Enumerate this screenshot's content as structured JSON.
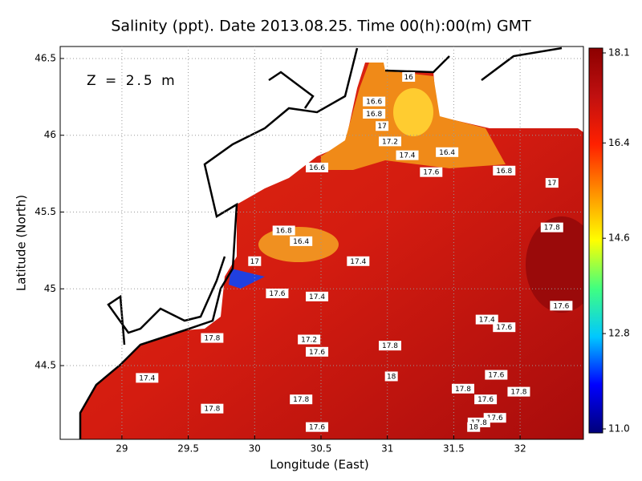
{
  "chart_data": {
    "type": "contour",
    "title": "Salinity (ppt). Date 2013.08.25. Time 00(h):00(m) GMT",
    "annotation": "Z = 2.5 m",
    "x_label": "Longitude (East)",
    "y_label": "Latitude (North)",
    "xlim": [
      28.535,
      32.477
    ],
    "ylim": [
      44.02,
      46.578
    ],
    "xticks": [
      29,
      29.5,
      30,
      30.5,
      31,
      31.5,
      32
    ],
    "yticks": [
      44.5,
      45,
      45.5,
      46,
      46.5
    ],
    "grid": true,
    "clim": [
      11,
      18.1
    ],
    "cticks": [
      {
        "value": 11,
        "label": "11.0"
      },
      12.8,
      14.6,
      16.4,
      18.1
    ],
    "colormap": [
      "#00007a",
      "#0000ff",
      "#00c8ff",
      "#40ff80",
      "#ffff00",
      "#ff9000",
      "#ff2000",
      "#c01010",
      "#8c0000"
    ],
    "contour_labels": [
      {
        "lon": 31.16,
        "lat": 46.38,
        "value": 16
      },
      {
        "lon": 30.9,
        "lat": 46.22,
        "value": 16.6
      },
      {
        "lon": 30.9,
        "lat": 46.14,
        "value": 16.8
      },
      {
        "lon": 30.96,
        "lat": 46.06,
        "value": 17
      },
      {
        "lon": 31.02,
        "lat": 45.96,
        "value": 17.2
      },
      {
        "lon": 31.15,
        "lat": 45.87,
        "value": 17.4
      },
      {
        "lon": 31.45,
        "lat": 45.89,
        "value": 16.4
      },
      {
        "lon": 31.33,
        "lat": 45.76,
        "value": 17.6
      },
      {
        "lon": 31.88,
        "lat": 45.77,
        "value": 16.8
      },
      {
        "lon": 32.24,
        "lat": 45.69,
        "value": 17
      },
      {
        "lon": 30.47,
        "lat": 45.79,
        "value": 16.6
      },
      {
        "lon": 30.22,
        "lat": 45.38,
        "value": 16.8
      },
      {
        "lon": 30.35,
        "lat": 45.31,
        "value": 16.4
      },
      {
        "lon": 30.0,
        "lat": 45.18,
        "value": 17
      },
      {
        "lon": 30.78,
        "lat": 45.18,
        "value": 17.4
      },
      {
        "lon": 30.17,
        "lat": 44.97,
        "value": 17.6
      },
      {
        "lon": 30.47,
        "lat": 44.95,
        "value": 17.4
      },
      {
        "lon": 32.24,
        "lat": 45.4,
        "value": 17.8
      },
      {
        "lon": 32.31,
        "lat": 44.89,
        "value": 17.6
      },
      {
        "lon": 31.75,
        "lat": 44.8,
        "value": 17.4
      },
      {
        "lon": 31.88,
        "lat": 44.75,
        "value": 17.6
      },
      {
        "lon": 30.41,
        "lat": 44.67,
        "value": 17.2
      },
      {
        "lon": 30.47,
        "lat": 44.59,
        "value": 17.6
      },
      {
        "lon": 29.68,
        "lat": 44.68,
        "value": 17.8
      },
      {
        "lon": 31.02,
        "lat": 44.63,
        "value": 17.8
      },
      {
        "lon": 29.19,
        "lat": 44.42,
        "value": 17.4
      },
      {
        "lon": 31.03,
        "lat": 44.43,
        "value": 18
      },
      {
        "lon": 31.82,
        "lat": 44.44,
        "value": 17.6
      },
      {
        "lon": 31.57,
        "lat": 44.35,
        "value": 17.8
      },
      {
        "lon": 31.99,
        "lat": 44.33,
        "value": 17.8
      },
      {
        "lon": 31.74,
        "lat": 44.28,
        "value": 17.6
      },
      {
        "lon": 30.35,
        "lat": 44.28,
        "value": 17.8
      },
      {
        "lon": 29.68,
        "lat": 44.22,
        "value": 17.8
      },
      {
        "lon": 31.81,
        "lat": 44.16,
        "value": 17.6
      },
      {
        "lon": 31.69,
        "lat": 44.13,
        "value": 17.8
      },
      {
        "lon": 30.47,
        "lat": 44.1,
        "value": 17.6
      },
      {
        "lon": 31.65,
        "lat": 44.1,
        "value": 18
      }
    ]
  }
}
